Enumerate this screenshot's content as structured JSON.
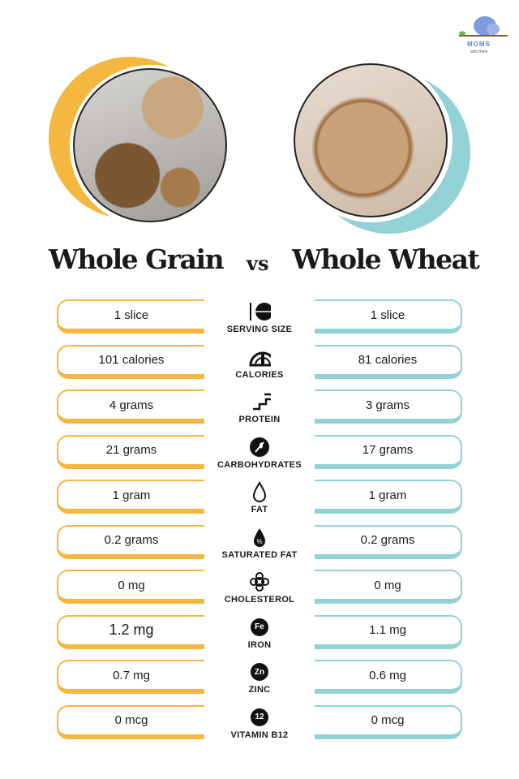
{
  "logo": {
    "text": "MOMS",
    "subtext": "who think"
  },
  "header": {
    "left_title": "Whole Grain",
    "vs": "vs",
    "right_title": "Whole Wheat"
  },
  "colors": {
    "left_accent": "#f4b740",
    "right_accent": "#92d2d5"
  },
  "rows": [
    {
      "label": "SERVING SIZE",
      "icon": "plate-cutlery-icon",
      "left": "1 slice",
      "right": "1 slice"
    },
    {
      "label": "CALORIES",
      "icon": "gauge-icon",
      "left": "101 calories",
      "right": "81 calories"
    },
    {
      "label": "PROTEIN",
      "icon": "protein-chain-icon",
      "left": "4 grams",
      "right": "3 grams"
    },
    {
      "label": "CARBOHYDRATES",
      "icon": "wheat-icon",
      "left": "21 grams",
      "right": "17 grams"
    },
    {
      "label": "FAT",
      "icon": "drop-icon",
      "left": "1 gram",
      "right": "1 gram"
    },
    {
      "label": "SATURATED FAT",
      "icon": "percent-drop-icon",
      "left": "0.2 grams",
      "right": "0.2 grams"
    },
    {
      "label": "CHOLESTEROL",
      "icon": "cholesterol-icon",
      "left": "0 mg",
      "right": "0 mg"
    },
    {
      "label": "IRON",
      "icon": "iron-icon",
      "symbol": "Fe",
      "left": "1.2 mg",
      "right": "1.1 mg"
    },
    {
      "label": "ZINC",
      "icon": "zinc-icon",
      "symbol": "Zn",
      "left": "0.7 mg",
      "right": "0.6 mg"
    },
    {
      "label": "VITAMIN B12",
      "icon": "vitamin-b12-icon",
      "symbol": "12",
      "left": "0 mcg",
      "right": "0 mcg"
    }
  ]
}
